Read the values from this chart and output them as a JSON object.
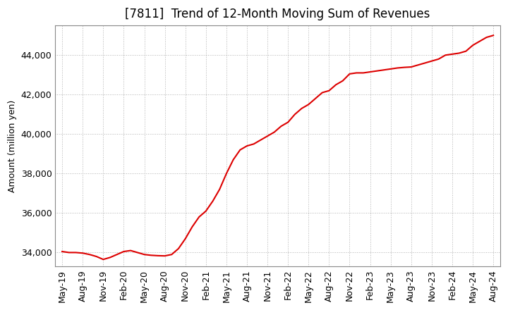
{
  "title": "[7811]  Trend of 12-Month Moving Sum of Revenues",
  "ylabel": "Amount (million yen)",
  "line_color": "#dd0000",
  "background_color": "#ffffff",
  "plot_bg_color": "#ffffff",
  "grid_color": "#aaaaaa",
  "x_labels": [
    "May-19",
    "Aug-19",
    "Nov-19",
    "Feb-20",
    "May-20",
    "Aug-20",
    "Nov-20",
    "Feb-21",
    "May-21",
    "Aug-21",
    "Nov-21",
    "Feb-22",
    "May-22",
    "Aug-22",
    "Nov-22",
    "Feb-23",
    "May-23",
    "Aug-23",
    "Nov-23",
    "Feb-24",
    "May-24",
    "Aug-24"
  ],
  "raw_data": [
    [
      0,
      34050
    ],
    [
      1,
      34000
    ],
    [
      2,
      34000
    ],
    [
      3,
      33970
    ],
    [
      4,
      33900
    ],
    [
      5,
      33800
    ],
    [
      6,
      33650
    ],
    [
      7,
      33750
    ],
    [
      8,
      33900
    ],
    [
      9,
      34050
    ],
    [
      10,
      34100
    ],
    [
      11,
      34000
    ],
    [
      12,
      33900
    ],
    [
      13,
      33860
    ],
    [
      14,
      33840
    ],
    [
      15,
      33830
    ],
    [
      16,
      33900
    ],
    [
      17,
      34200
    ],
    [
      18,
      34700
    ],
    [
      19,
      35300
    ],
    [
      20,
      35800
    ],
    [
      21,
      36100
    ],
    [
      22,
      36600
    ],
    [
      23,
      37200
    ],
    [
      24,
      38000
    ],
    [
      25,
      38700
    ],
    [
      26,
      39200
    ],
    [
      27,
      39400
    ],
    [
      28,
      39500
    ],
    [
      29,
      39700
    ],
    [
      30,
      39900
    ],
    [
      31,
      40100
    ],
    [
      32,
      40400
    ],
    [
      33,
      40600
    ],
    [
      34,
      41000
    ],
    [
      35,
      41300
    ],
    [
      36,
      41500
    ],
    [
      37,
      41800
    ],
    [
      38,
      42100
    ],
    [
      39,
      42200
    ],
    [
      40,
      42500
    ],
    [
      41,
      42700
    ],
    [
      42,
      43050
    ],
    [
      43,
      43100
    ],
    [
      44,
      43100
    ],
    [
      45,
      43150
    ],
    [
      46,
      43200
    ],
    [
      47,
      43250
    ],
    [
      48,
      43300
    ],
    [
      49,
      43350
    ],
    [
      50,
      43380
    ],
    [
      51,
      43400
    ],
    [
      52,
      43500
    ],
    [
      53,
      43600
    ],
    [
      54,
      43700
    ],
    [
      55,
      43800
    ],
    [
      56,
      44000
    ],
    [
      57,
      44050
    ],
    [
      58,
      44100
    ],
    [
      59,
      44200
    ],
    [
      60,
      44500
    ],
    [
      61,
      44700
    ],
    [
      62,
      44900
    ],
    [
      63,
      45000
    ]
  ],
  "ylim_min": 33300,
  "ylim_max": 45500,
  "yticks": [
    34000,
    36000,
    38000,
    40000,
    42000,
    44000
  ],
  "title_fontsize": 12,
  "label_fontsize": 9,
  "tick_fontsize": 9
}
